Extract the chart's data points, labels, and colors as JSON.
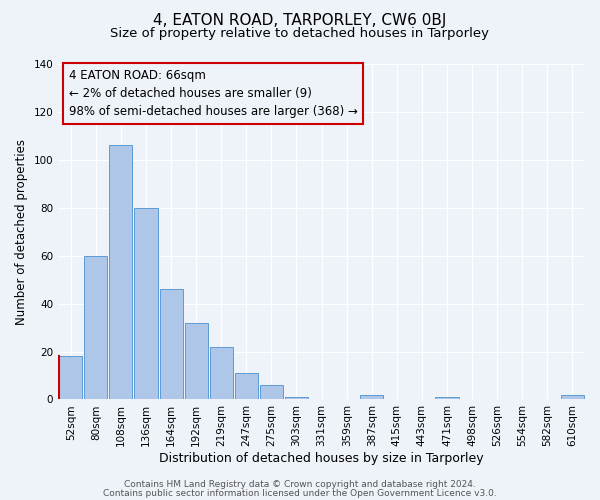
{
  "title": "4, EATON ROAD, TARPORLEY, CW6 0BJ",
  "subtitle": "Size of property relative to detached houses in Tarporley",
  "xlabel": "Distribution of detached houses by size in Tarporley",
  "ylabel": "Number of detached properties",
  "bar_labels": [
    "52sqm",
    "80sqm",
    "108sqm",
    "136sqm",
    "164sqm",
    "192sqm",
    "219sqm",
    "247sqm",
    "275sqm",
    "303sqm",
    "331sqm",
    "359sqm",
    "387sqm",
    "415sqm",
    "443sqm",
    "471sqm",
    "498sqm",
    "526sqm",
    "554sqm",
    "582sqm",
    "610sqm"
  ],
  "bar_values": [
    18,
    60,
    106,
    80,
    46,
    32,
    22,
    11,
    6,
    1,
    0,
    0,
    2,
    0,
    0,
    1,
    0,
    0,
    0,
    0,
    2
  ],
  "bar_color": "#aec6e8",
  "bar_edge_color": "#5b9bd5",
  "ylim": [
    0,
    140
  ],
  "yticks": [
    0,
    20,
    40,
    60,
    80,
    100,
    120,
    140
  ],
  "annotation_text_line1": "4 EATON ROAD: 66sqm",
  "annotation_text_line2": "← 2% of detached houses are smaller (9)",
  "annotation_text_line3": "98% of semi-detached houses are larger (368) →",
  "marker_color": "#cc0000",
  "footer_line1": "Contains HM Land Registry data © Crown copyright and database right 2024.",
  "footer_line2": "Contains public sector information licensed under the Open Government Licence v3.0.",
  "background_color": "#eef2f9",
  "grid_color": "#ffffff",
  "title_fontsize": 11,
  "subtitle_fontsize": 9.5,
  "xlabel_fontsize": 9,
  "ylabel_fontsize": 8.5,
  "tick_fontsize": 7.5,
  "annotation_fontsize": 8.5,
  "footer_fontsize": 6.5
}
